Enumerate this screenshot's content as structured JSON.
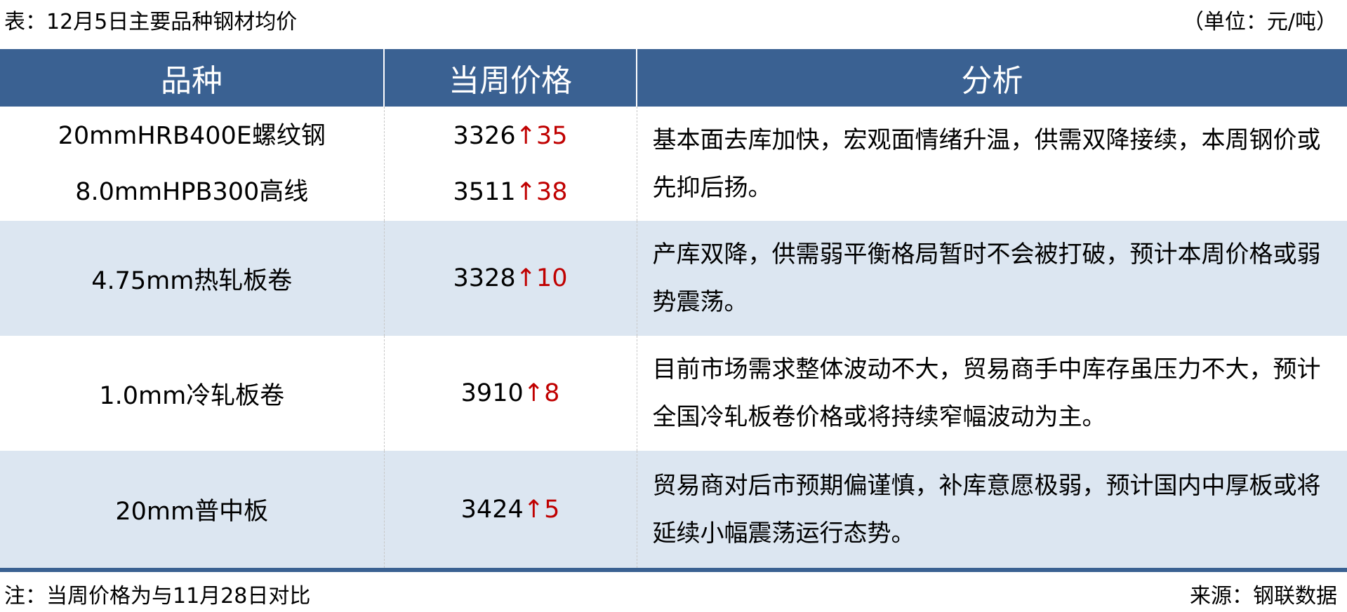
{
  "title": "表：12月5日主要品种钢材均价",
  "unit": "（单位：元/吨）",
  "headers": [
    "品种",
    "当周价格",
    "分析"
  ],
  "rows": [
    {
      "items": [
        {
          "name": "20mmHRB400E螺纹钢",
          "price": "3326",
          "arrow": "↑",
          "change": "35"
        },
        {
          "name": "8.0mmHPB300高线",
          "price": "3511",
          "arrow": "↑",
          "change": "38"
        }
      ],
      "analysis": "基本面去库加快，宏观面情绪升温，供需双降接续，本周钢价或先抑后扬。"
    },
    {
      "items": [
        {
          "name": "4.75mm热轧板卷",
          "price": "3328",
          "arrow": "↑",
          "change": "10"
        }
      ],
      "analysis": "产库双降，供需弱平衡格局暂时不会被打破，预计本周价格或弱势震荡。"
    },
    {
      "items": [
        {
          "name": "1.0mm冷轧板卷",
          "price": "3910",
          "arrow": "↑",
          "change": "8"
        }
      ],
      "analysis": "目前市场需求整体波动不大，贸易商手中库存虽压力不大，预计全国冷轧板卷价格或将持续窄幅波动为主。"
    },
    {
      "items": [
        {
          "name": "20mm普中板",
          "price": "3424",
          "arrow": "↑",
          "change": "5"
        }
      ],
      "analysis": "贸易商对后市预期偏谨慎，补库意愿极弱，预计国内中厚板或将延续小幅震荡运行态势。"
    }
  ],
  "note": "注：当周价格为与11月28日对比",
  "source": "来源：钢联数据",
  "colors": {
    "header": "#3A6192",
    "alt_row": "#DCE6F1",
    "up": "#C00000"
  }
}
